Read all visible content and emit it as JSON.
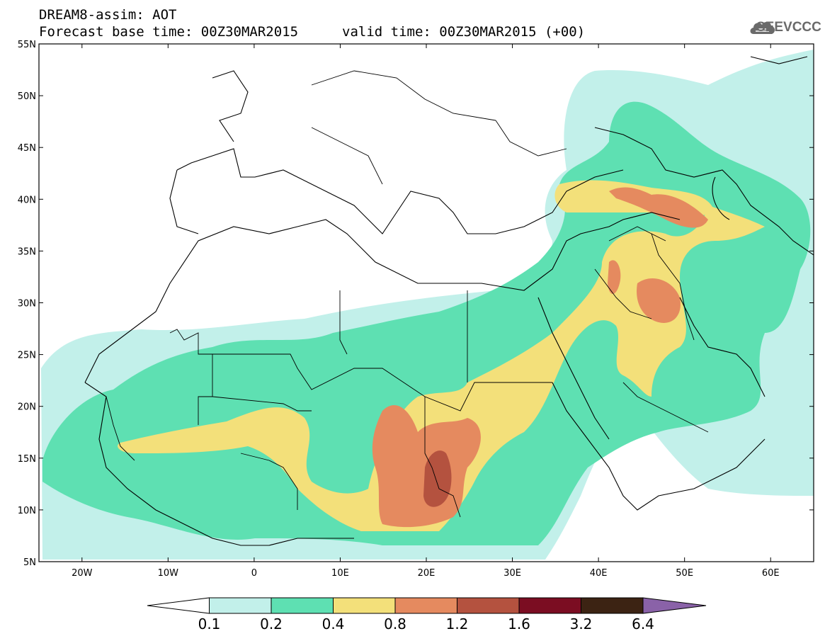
{
  "header": {
    "title_line1": "DREAM8-assim: AOT",
    "forecast_base": "Forecast base time: 00Z30MAR2015",
    "valid_time": "valid time: 00Z30MAR2015 (+00)",
    "logo_text": "SEEVCCC"
  },
  "map": {
    "lat_labels": [
      "55N",
      "50N",
      "45N",
      "40N",
      "35N",
      "30N",
      "25N",
      "20N",
      "15N",
      "10N",
      "5N"
    ],
    "lon_labels": [
      "20W",
      "10W",
      "0",
      "10E",
      "20E",
      "30E",
      "40E",
      "50E",
      "60E"
    ],
    "lat_values": [
      55,
      50,
      45,
      40,
      35,
      30,
      25,
      20,
      15,
      10,
      5
    ],
    "lon_values": [
      -20,
      -10,
      0,
      10,
      20,
      30,
      40,
      50,
      60
    ],
    "extent": {
      "lon_min": -25,
      "lon_max": 65,
      "lat_min": 5,
      "lat_max": 55
    }
  },
  "legend": {
    "labels": [
      "0.1",
      "0.2",
      "0.4",
      "0.8",
      "1.2",
      "1.6",
      "3.2",
      "6.4"
    ],
    "colors": [
      "#ffffff",
      "#c2f0ea",
      "#5ee0b2",
      "#f3e07a",
      "#e58a5f",
      "#b4523f",
      "#7b0d22",
      "#3c2313",
      "#8a62a8"
    ]
  }
}
